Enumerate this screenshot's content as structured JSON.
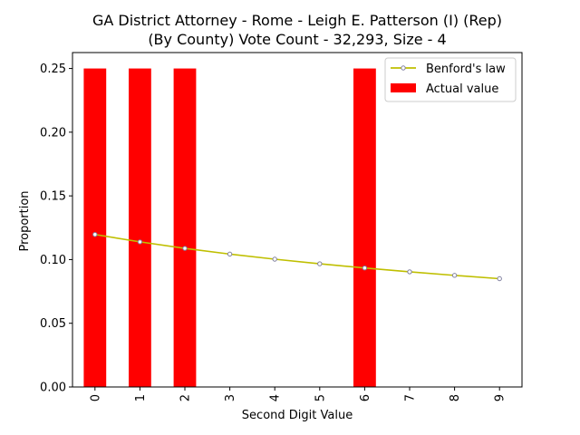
{
  "chart_data": {
    "type": "bar",
    "title_line1": "GA District Attorney - Rome - Leigh E. Patterson (I) (Rep)",
    "title_line2": "(By County) Vote Count - 32,293, Size - 4",
    "xlabel": "Second Digit Value",
    "ylabel": "Proportion",
    "categories": [
      "0",
      "1",
      "2",
      "3",
      "4",
      "5",
      "6",
      "7",
      "8",
      "9"
    ],
    "ylim": [
      0,
      0.2625
    ],
    "yticks": [
      0.0,
      0.05,
      0.1,
      0.15,
      0.2,
      0.25
    ],
    "ytick_labels": [
      "0.00",
      "0.05",
      "0.10",
      "0.15",
      "0.20",
      "0.25"
    ],
    "grid": false,
    "legend_position": "top-right",
    "series": [
      {
        "name": "Actual value",
        "kind": "bar",
        "color": "#ff0000",
        "values": [
          0.25,
          0.25,
          0.25,
          0,
          0,
          0,
          0.25,
          0,
          0,
          0
        ]
      },
      {
        "name": "Benford's law",
        "kind": "line",
        "color": "#bfbf00",
        "marker_edge": "#7f7f9f",
        "values": [
          0.1197,
          0.1139,
          0.1088,
          0.1043,
          0.1003,
          0.0967,
          0.0934,
          0.0904,
          0.0876,
          0.085
        ]
      }
    ]
  }
}
